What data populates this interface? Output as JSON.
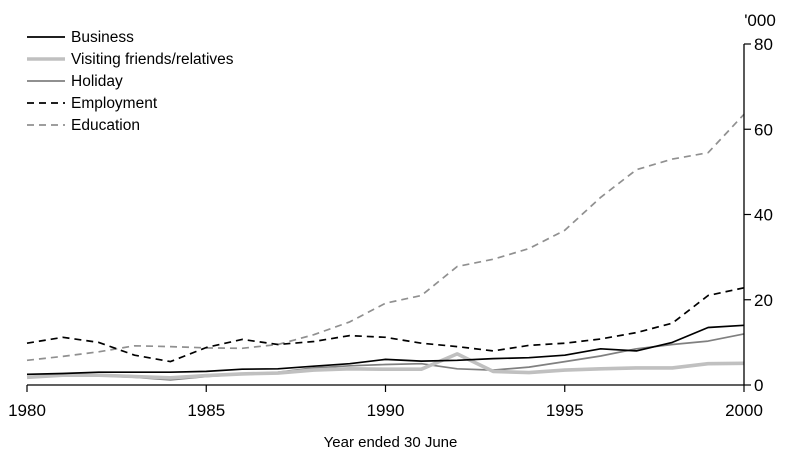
{
  "chart_data": {
    "type": "line",
    "title": "",
    "xlabel": "Year ended 30 June",
    "ylabel": "'000",
    "xlim": [
      1980,
      2000
    ],
    "ylim": [
      0,
      80
    ],
    "x_ticks": [
      1980,
      1985,
      1990,
      1995,
      2000
    ],
    "y_ticks": [
      0,
      20,
      40,
      60,
      80
    ],
    "x_tick_labels": [
      "1980",
      "1985",
      "1990",
      "1995",
      "2000"
    ],
    "y_tick_labels": [
      "0",
      "20",
      "40",
      "60",
      "80"
    ],
    "y_axis_side": "right",
    "grid": false,
    "legend_position": "top-left",
    "x": [
      1980,
      1981,
      1982,
      1983,
      1984,
      1985,
      1986,
      1987,
      1988,
      1989,
      1990,
      1991,
      1992,
      1993,
      1994,
      1995,
      1996,
      1997,
      1998,
      1999,
      2000
    ],
    "series": [
      {
        "name": "Business",
        "color": "#000000",
        "dash": "solid",
        "width": "normal",
        "values": [
          2.5,
          2.7,
          3.0,
          3.0,
          3.0,
          3.2,
          3.7,
          3.8,
          4.4,
          5.0,
          6.0,
          5.6,
          5.8,
          6.2,
          6.4,
          7.0,
          8.5,
          8.0,
          10.0,
          13.5,
          14.0
        ]
      },
      {
        "name": "Visiting friends/relatives",
        "color": "#c0c0c0",
        "dash": "solid",
        "width": "thick",
        "values": [
          1.8,
          2.3,
          2.3,
          2.0,
          1.7,
          2.2,
          2.6,
          2.8,
          3.5,
          3.8,
          3.7,
          3.7,
          7.3,
          3.2,
          2.9,
          3.5,
          3.8,
          4.0,
          4.0,
          5.0,
          5.1
        ]
      },
      {
        "name": "Holiday",
        "color": "#808080",
        "dash": "solid",
        "width": "normal",
        "values": [
          2.0,
          2.2,
          2.2,
          1.8,
          1.2,
          2.0,
          2.5,
          3.0,
          4.0,
          4.5,
          4.8,
          5.0,
          3.8,
          3.5,
          4.2,
          5.5,
          6.8,
          8.5,
          9.5,
          10.3,
          12.0
        ]
      },
      {
        "name": "Employment",
        "color": "#000000",
        "dash": "dashed",
        "width": "normal",
        "values": [
          9.8,
          11.2,
          10.0,
          7.0,
          5.5,
          8.8,
          10.7,
          9.5,
          10.2,
          11.6,
          11.2,
          9.8,
          9.0,
          8.0,
          9.3,
          9.8,
          10.8,
          12.3,
          14.5,
          21.0,
          22.8
        ]
      },
      {
        "name": "Education",
        "color": "#909090",
        "dash": "dashed",
        "width": "normal",
        "values": [
          5.8,
          6.7,
          7.8,
          9.2,
          9.0,
          8.7,
          8.6,
          9.5,
          11.8,
          14.8,
          19.2,
          21.0,
          27.8,
          29.5,
          32.0,
          36.3,
          44.0,
          50.5,
          53.0,
          54.5,
          63.5
        ]
      }
    ]
  }
}
